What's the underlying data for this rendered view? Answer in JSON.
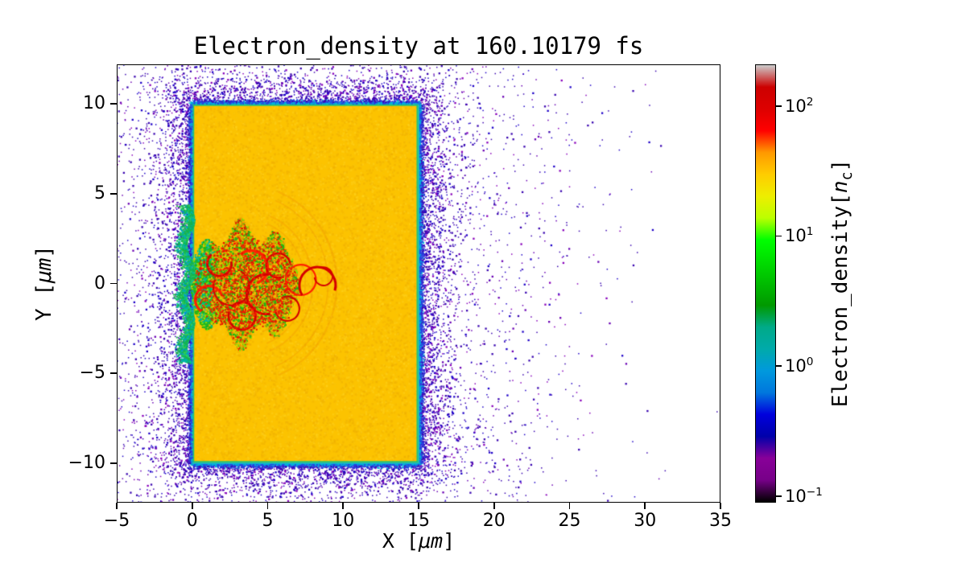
{
  "labels": {
    "title": "Electron_density at 160.10179 fs",
    "xlabel": {
      "pre": "X [",
      "italic": "μm",
      "post": "]"
    },
    "ylabel": {
      "pre": "Y [",
      "italic": "μm",
      "post": "]"
    },
    "cbar": {
      "pre": "Electron_density[",
      "italic": "n",
      "sub": "c",
      "post": "]"
    }
  },
  "chart_data": {
    "type": "heatmap",
    "title": "Electron_density at 160.10179 fs",
    "time_label_fs": "160.10179",
    "xlabel": "X [μm]",
    "ylabel": "Y [μm]",
    "colorbar_label": "Electron_density[n_c]",
    "xlim": [
      -5,
      35
    ],
    "ylim": [
      -12.2,
      12.2
    ],
    "x_ticks": [
      {
        "value": -5,
        "label": "−5"
      },
      {
        "value": 0,
        "label": "0"
      },
      {
        "value": 5,
        "label": "5"
      },
      {
        "value": 10,
        "label": "10"
      },
      {
        "value": 15,
        "label": "15"
      },
      {
        "value": 20,
        "label": "20"
      },
      {
        "value": 25,
        "label": "25"
      },
      {
        "value": 30,
        "label": "30"
      },
      {
        "value": 35,
        "label": "35"
      }
    ],
    "y_ticks": [
      {
        "value": 10,
        "label": "10"
      },
      {
        "value": 5,
        "label": "5"
      },
      {
        "value": 0,
        "label": "0"
      },
      {
        "value": -5,
        "label": "−5"
      },
      {
        "value": -10,
        "label": "−10"
      }
    ],
    "scale": "log",
    "colorbar_range_exponents": [
      -1.05,
      2.32
    ],
    "colorbar_ticks": [
      {
        "base": "10",
        "exponent": "2",
        "value": 2
      },
      {
        "base": "10",
        "exponent": "1",
        "value": 1
      },
      {
        "base": "10",
        "exponent": "0",
        "value": 0
      },
      {
        "base": "10",
        "exponent": "−1",
        "value": -1
      }
    ],
    "colormap": "nipy_spectral",
    "colormap_stops": [
      {
        "pos": 0.0,
        "color": "#000000"
      },
      {
        "pos": 0.05,
        "color": "#770088"
      },
      {
        "pos": 0.1,
        "color": "#880099"
      },
      {
        "pos": 0.15,
        "color": "#0000aa"
      },
      {
        "pos": 0.2,
        "color": "#0000dd"
      },
      {
        "pos": 0.25,
        "color": "#0077dd"
      },
      {
        "pos": 0.3,
        "color": "#0099dd"
      },
      {
        "pos": 0.35,
        "color": "#00aaaa"
      },
      {
        "pos": 0.4,
        "color": "#00aa88"
      },
      {
        "pos": 0.45,
        "color": "#009900"
      },
      {
        "pos": 0.5,
        "color": "#00bb00"
      },
      {
        "pos": 0.55,
        "color": "#00dd00"
      },
      {
        "pos": 0.6,
        "color": "#00ff00"
      },
      {
        "pos": 0.65,
        "color": "#bbff00"
      },
      {
        "pos": 0.7,
        "color": "#eeee00"
      },
      {
        "pos": 0.75,
        "color": "#ffcc00"
      },
      {
        "pos": 0.8,
        "color": "#ff9900"
      },
      {
        "pos": 0.85,
        "color": "#ff0000"
      },
      {
        "pos": 0.9,
        "color": "#dd0000"
      },
      {
        "pos": 0.95,
        "color": "#cc0000"
      },
      {
        "pos": 1.0,
        "color": "#cccccc"
      }
    ],
    "regions": {
      "slab": {
        "x": [
          0,
          15
        ],
        "y": [
          -10,
          10
        ],
        "approx_density_nc": 30,
        "color": "#fcc300",
        "noise": [
          "#f3b300",
          "#ffd21e",
          "#f8c60a",
          "#eeae00"
        ]
      },
      "edge": {
        "inner": "#18c47e",
        "colors": [
          "#00b4d8",
          "#2a3fe0"
        ],
        "plume_colors": [
          "#17b34a",
          "#00b8a0",
          "#34d05e",
          "#0096d2"
        ]
      },
      "halo": {
        "approx_density_nc": 0.3,
        "colors": [
          "#3a06b0",
          "#1e00c8",
          "#6a00b4",
          "#8800bb"
        ],
        "extent_x": [
          -5,
          31
        ]
      },
      "interaction": {
        "x": [
          0,
          9.5
        ],
        "y": [
          -4.4,
          4.4
        ],
        "approx_density_nc_range": [
          5,
          150
        ],
        "colors": [
          "#22b514",
          "#8ae000",
          "#f0c000",
          "#f08800",
          "#e01800"
        ],
        "rim_color": "#d40000",
        "rim_hot_color": "#ff2000",
        "ripple_color": "#f09000",
        "rims": [
          [
            1.1,
            -0.9,
            0.9
          ],
          [
            1.8,
            1.1,
            0.8
          ],
          [
            2.6,
            -0.2,
            1.2
          ],
          [
            3.3,
            -1.8,
            0.9
          ],
          [
            3.9,
            0.9,
            1.1
          ],
          [
            4.9,
            -0.6,
            1.3
          ],
          [
            5.7,
            1.0,
            0.8
          ],
          [
            6.3,
            -1.4,
            0.8
          ],
          [
            7.2,
            0.2,
            1.0
          ],
          [
            8.3,
            -0.1,
            1.2
          ],
          [
            8.7,
            0.4,
            0.6
          ]
        ]
      }
    }
  }
}
